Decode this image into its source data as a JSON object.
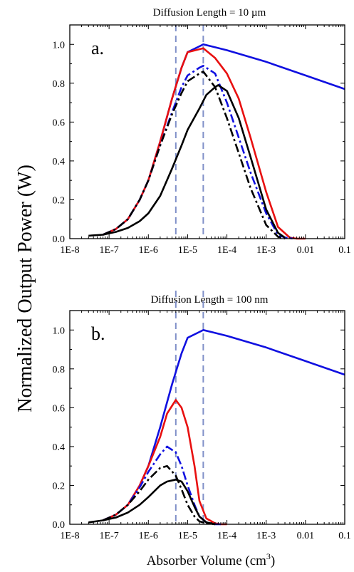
{
  "figure": {
    "ylabel": "Normalized Output Power (W)",
    "xlabel_main": "Absorber Volume (cm",
    "xlabel_sup": "3",
    "xlabel_tail": ")"
  },
  "colors": {
    "blue": "#1010e0",
    "red": "#e81010",
    "black": "#000000",
    "reference_line": "#8090c8"
  },
  "chart_data": [
    {
      "type": "line",
      "panel_label": "a.",
      "title": "Diffusion Length = 10 µm",
      "xlabel": "Absorber Volume (cm3)",
      "ylabel": "Normalized Output Power (W)",
      "xscale": "log",
      "xlim": [
        1e-08,
        0.1
      ],
      "ylim": [
        0,
        1.1
      ],
      "xticks": [
        1e-08,
        1e-07,
        1e-06,
        1e-05,
        0.0001,
        0.001,
        0.01,
        0.1
      ],
      "xtick_labels": [
        "1E-8",
        "1E-7",
        "1E-6",
        "1E-5",
        "1E-4",
        "1E-3",
        "0.01",
        "0.1"
      ],
      "yticks": [
        0.0,
        0.2,
        0.4,
        0.6,
        0.8,
        1.0
      ],
      "ytick_labels": [
        "0.0",
        "0.2",
        "0.4",
        "0.6",
        "0.8",
        "1.0"
      ],
      "reference_lines_x": [
        5e-06,
        2.5e-05
      ],
      "series": [
        {
          "color": "blue",
          "dash": "solid",
          "x": [
            7e-08,
            1.5e-07,
            3e-07,
            6e-07,
            1e-06,
            2e-06,
            4e-06,
            7e-06,
            1e-05,
            2e-05,
            2.5e-05,
            4e-05,
            0.0001,
            0.001,
            0.01,
            0.1
          ],
          "y": [
            0.02,
            0.05,
            0.1,
            0.2,
            0.3,
            0.5,
            0.72,
            0.88,
            0.96,
            0.99,
            1.0,
            0.99,
            0.97,
            0.91,
            0.84,
            0.77
          ]
        },
        {
          "color": "red",
          "dash": "solid",
          "x": [
            7e-08,
            1.5e-07,
            3e-07,
            6e-07,
            1e-06,
            2e-06,
            4e-06,
            7e-06,
            1e-05,
            2.5e-05,
            5e-05,
            0.0001,
            0.0002,
            0.0004,
            0.001,
            0.002,
            0.004,
            0.006,
            0.01
          ],
          "y": [
            0.02,
            0.05,
            0.1,
            0.2,
            0.3,
            0.5,
            0.72,
            0.88,
            0.96,
            0.98,
            0.93,
            0.85,
            0.72,
            0.52,
            0.24,
            0.06,
            0.005,
            0.0,
            0.0
          ]
        },
        {
          "color": "blue",
          "dash": "dashdot",
          "x": [
            7e-08,
            1.5e-07,
            3e-07,
            6e-07,
            1e-06,
            2e-06,
            4e-06,
            7e-06,
            1e-05,
            2e-05,
            2.5e-05,
            5e-05,
            0.0001,
            0.0002,
            0.0004,
            0.001,
            0.002,
            0.003,
            0.005
          ],
          "y": [
            0.02,
            0.05,
            0.1,
            0.2,
            0.3,
            0.48,
            0.65,
            0.78,
            0.84,
            0.88,
            0.89,
            0.85,
            0.7,
            0.52,
            0.34,
            0.13,
            0.02,
            0.005,
            0.0
          ]
        },
        {
          "color": "black",
          "dash": "dashdot",
          "x": [
            7e-08,
            1.5e-07,
            3e-07,
            6e-07,
            1e-06,
            2e-06,
            4e-06,
            7e-06,
            1e-05,
            2e-05,
            2.5e-05,
            5e-05,
            0.0001,
            0.0002,
            0.0004,
            0.001,
            0.002,
            0.003
          ],
          "y": [
            0.02,
            0.05,
            0.1,
            0.2,
            0.3,
            0.48,
            0.64,
            0.75,
            0.81,
            0.85,
            0.86,
            0.78,
            0.62,
            0.44,
            0.26,
            0.07,
            0.01,
            0.0
          ]
        },
        {
          "color": "black",
          "dash": "solid",
          "x": [
            3e-08,
            7e-08,
            1.5e-07,
            3e-07,
            6e-07,
            1e-06,
            2e-06,
            4e-06,
            7e-06,
            1e-05,
            2e-05,
            3e-05,
            5e-05,
            6e-05,
            0.0001,
            0.0002,
            0.0004,
            0.001,
            0.002,
            0.003
          ],
          "y": [
            0.015,
            0.02,
            0.035,
            0.055,
            0.09,
            0.13,
            0.22,
            0.36,
            0.48,
            0.56,
            0.67,
            0.74,
            0.78,
            0.79,
            0.76,
            0.62,
            0.42,
            0.15,
            0.03,
            0.005
          ]
        }
      ]
    },
    {
      "type": "line",
      "panel_label": "b.",
      "title": "Diffusion Length = 100 nm",
      "xlabel": "Absorber Volume (cm3)",
      "ylabel": "Normalized Output Power (W)",
      "xscale": "log",
      "xlim": [
        1e-08,
        0.1
      ],
      "ylim": [
        0,
        1.1
      ],
      "xticks": [
        1e-08,
        1e-07,
        1e-06,
        1e-05,
        0.0001,
        0.001,
        0.01,
        0.1
      ],
      "xtick_labels": [
        "1E-8",
        "1E-7",
        "1E-6",
        "1E-5",
        "1E-4",
        "1E-3",
        "0.01",
        "0.1"
      ],
      "yticks": [
        0.0,
        0.2,
        0.4,
        0.6,
        0.8,
        1.0
      ],
      "ytick_labels": [
        "0.0",
        "0.2",
        "0.4",
        "0.6",
        "0.8",
        "1.0"
      ],
      "reference_lines_x": [
        5e-06,
        2.5e-05
      ],
      "series": [
        {
          "color": "blue",
          "dash": "solid",
          "x": [
            7e-08,
            1.5e-07,
            3e-07,
            6e-07,
            1e-06,
            2e-06,
            4e-06,
            7e-06,
            1e-05,
            2e-05,
            2.5e-05,
            4e-05,
            0.0001,
            0.001,
            0.01,
            0.1
          ],
          "y": [
            0.02,
            0.05,
            0.1,
            0.2,
            0.3,
            0.5,
            0.72,
            0.88,
            0.96,
            0.99,
            1.0,
            0.99,
            0.97,
            0.91,
            0.84,
            0.77
          ]
        },
        {
          "color": "red",
          "dash": "solid",
          "x": [
            7e-08,
            1.5e-07,
            3e-07,
            6e-07,
            1e-06,
            2e-06,
            3e-06,
            5e-06,
            7e-06,
            1e-05,
            1.5e-05,
            2e-05,
            3e-05,
            5e-05,
            7e-05,
            0.0001
          ],
          "y": [
            0.02,
            0.05,
            0.1,
            0.2,
            0.3,
            0.45,
            0.57,
            0.64,
            0.6,
            0.5,
            0.3,
            0.12,
            0.03,
            0.005,
            0.0,
            0.0
          ]
        },
        {
          "color": "blue",
          "dash": "dashdot",
          "x": [
            7e-08,
            1.5e-07,
            3e-07,
            6e-07,
            1e-06,
            2e-06,
            3e-06,
            5e-06,
            7e-06,
            1e-05,
            1.5e-05,
            2e-05,
            3e-05,
            5e-05,
            7e-05
          ],
          "y": [
            0.02,
            0.05,
            0.1,
            0.19,
            0.27,
            0.36,
            0.4,
            0.37,
            0.3,
            0.2,
            0.1,
            0.04,
            0.01,
            0.0,
            0.0
          ]
        },
        {
          "color": "black",
          "dash": "dashdot",
          "x": [
            7e-08,
            1.5e-07,
            3e-07,
            6e-07,
            1e-06,
            2e-06,
            3e-06,
            5e-06,
            7e-06,
            1e-05,
            1.5e-05,
            2e-05,
            3e-05,
            5e-05
          ],
          "y": [
            0.02,
            0.05,
            0.1,
            0.17,
            0.23,
            0.29,
            0.3,
            0.25,
            0.18,
            0.1,
            0.04,
            0.015,
            0.005,
            0.0
          ]
        },
        {
          "color": "black",
          "dash": "solid",
          "x": [
            3e-08,
            7e-08,
            1.5e-07,
            3e-07,
            6e-07,
            1e-06,
            2e-06,
            3e-06,
            5e-06,
            7e-06,
            1e-05,
            1.5e-05,
            2e-05,
            3e-05,
            5e-05
          ],
          "y": [
            0.01,
            0.02,
            0.035,
            0.06,
            0.1,
            0.14,
            0.2,
            0.22,
            0.23,
            0.22,
            0.17,
            0.09,
            0.04,
            0.01,
            0.0
          ]
        }
      ]
    }
  ]
}
